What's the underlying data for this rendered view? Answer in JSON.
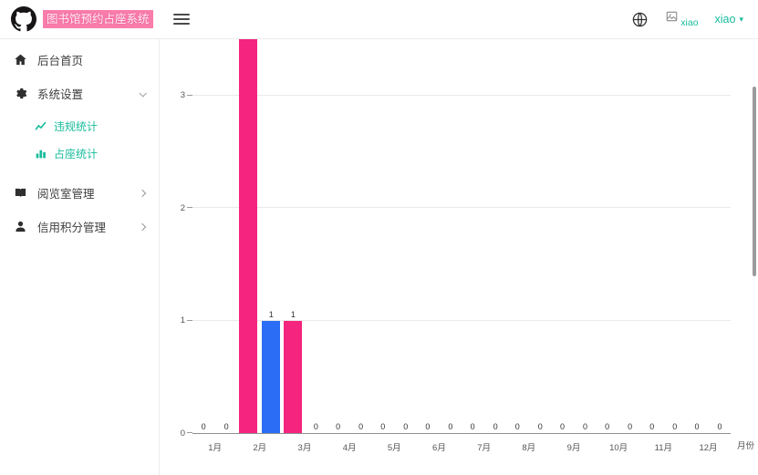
{
  "topbar": {
    "brand": "图书馆预约占座系统",
    "username": "xiao",
    "avatar_alt": "xiao",
    "caret": "▾"
  },
  "sidebar": {
    "items": [
      {
        "label": "后台首页",
        "icon": "home-icon"
      },
      {
        "label": "系统设置",
        "icon": "gear-icon",
        "state": "expanded",
        "children": [
          {
            "label": "违规统计",
            "icon": "line-chart-icon"
          },
          {
            "label": "占座统计",
            "icon": "bar-chart-icon"
          }
        ]
      },
      {
        "label": "阅览室管理",
        "icon": "book-icon",
        "state": "collapsed"
      },
      {
        "label": "信用积分管理",
        "icon": "user-icon",
        "state": "collapsed"
      }
    ]
  },
  "chart_data": {
    "type": "bar",
    "categories": [
      "1月",
      "2月",
      "3月",
      "4月",
      "5月",
      "6月",
      "7月",
      "8月",
      "9月",
      "10月",
      "11月",
      "12月"
    ],
    "series": [
      {
        "name": "series-pink",
        "color": "#f5247f",
        "values": [
          0,
          4,
          1,
          0,
          0,
          0,
          0,
          0,
          0,
          0,
          0,
          0
        ]
      },
      {
        "name": "series-blue",
        "color": "#2b6ef5",
        "values": [
          0,
          1,
          0,
          0,
          0,
          0,
          0,
          0,
          0,
          0,
          0,
          0
        ]
      }
    ],
    "title": "",
    "xlabel": "月份",
    "ylabel": "",
    "ylim": [
      0,
      3.5
    ],
    "yticks": [
      0,
      1,
      2,
      3
    ],
    "grid": true,
    "legend": "none"
  },
  "colors": {
    "accent": "#18bc9c",
    "brand_highlight_bg": "#f97dab",
    "pink_bar": "#f5247f",
    "blue_bar": "#2b6ef5"
  }
}
